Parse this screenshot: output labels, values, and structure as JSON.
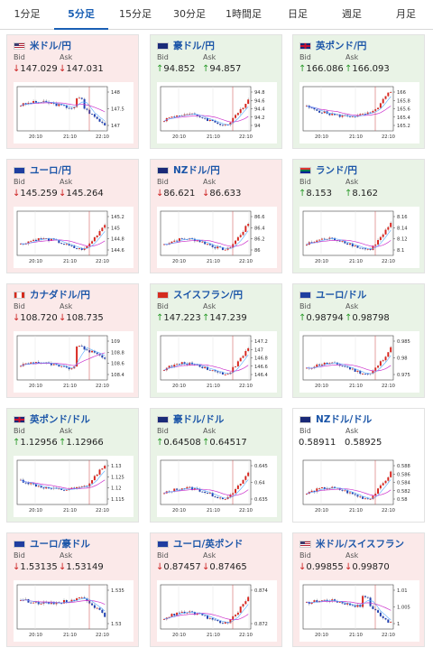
{
  "tabs": [
    "1分足",
    "5分足",
    "15分足",
    "30分足",
    "1時間足",
    "日足",
    "週足",
    "月足"
  ],
  "active_tab": 1,
  "bid_label": "Bid",
  "ask_label": "Ask",
  "x_labels": [
    "20:10",
    "21:10",
    "22:10"
  ],
  "colors": {
    "accent": "#1a5fb4",
    "up": "#2a9a2a",
    "down": "#cc2222",
    "ma": "#cc33cc",
    "cross": "#3377cc"
  },
  "cards": [
    {
      "title": "米ドル/円",
      "flag": "us-flag",
      "bid": "147.029",
      "ask": "147.031",
      "bid_dir": "down",
      "ask_dir": "down",
      "tone": "down",
      "y_ticks": [
        "148",
        "147.5",
        "147"
      ],
      "trend": "down_spike"
    },
    {
      "title": "豪ドル/円",
      "flag": "au-flag",
      "bid": "94.852",
      "ask": "94.857",
      "bid_dir": "up",
      "ask_dir": "up",
      "tone": "up",
      "y_ticks": [
        "94.8",
        "94.6",
        "94.4",
        "94.2",
        "94"
      ],
      "trend": "up"
    },
    {
      "title": "英ポンド/円",
      "flag": "gb-flag",
      "bid": "166.086",
      "ask": "166.093",
      "bid_dir": "up",
      "ask_dir": "up",
      "tone": "up",
      "y_ticks": [
        "166",
        "165.8",
        "165.6",
        "165.4",
        "165.2"
      ],
      "trend": "dip_up"
    },
    {
      "title": "ユーロ/円",
      "flag": "eu-flag",
      "bid": "145.259",
      "ask": "145.264",
      "bid_dir": "down",
      "ask_dir": "down",
      "tone": "down",
      "y_ticks": [
        "145.2",
        "145",
        "144.8",
        "144.6"
      ],
      "trend": "up"
    },
    {
      "title": "NZドル/円",
      "flag": "nz-flag",
      "bid": "86.621",
      "ask": "86.633",
      "bid_dir": "down",
      "ask_dir": "down",
      "tone": "down",
      "y_ticks": [
        "86.6",
        "86.4",
        "86.2",
        "86"
      ],
      "trend": "up"
    },
    {
      "title": "ランド/円",
      "flag": "za-flag",
      "bid": "8.153",
      "ask": "8.162",
      "bid_dir": "up",
      "ask_dir": "up",
      "tone": "up",
      "y_ticks": [
        "8.16",
        "8.14",
        "8.12",
        "8.1"
      ],
      "trend": "up"
    },
    {
      "title": "カナダドル/円",
      "flag": "ca-flag",
      "bid": "108.720",
      "ask": "108.735",
      "bid_dir": "down",
      "ask_dir": "down",
      "tone": "down",
      "y_ticks": [
        "109",
        "108.8",
        "108.6",
        "108.4"
      ],
      "trend": "jump_down"
    },
    {
      "title": "スイスフラン/円",
      "flag": "ch-flag",
      "bid": "147.223",
      "ask": "147.239",
      "bid_dir": "up",
      "ask_dir": "up",
      "tone": "up",
      "y_ticks": [
        "147.2",
        "147",
        "146.8",
        "146.6",
        "146.4"
      ],
      "trend": "up"
    },
    {
      "title": "ユーロ/ドル",
      "flag": "eu-flag",
      "bid": "0.98794",
      "ask": "0.98798",
      "bid_dir": "up",
      "ask_dir": "up",
      "tone": "up",
      "y_ticks": [
        "0.985",
        "0.98",
        "0.975"
      ],
      "trend": "up"
    },
    {
      "title": "英ポンド/ドル",
      "flag": "gb-flag",
      "bid": "1.12956",
      "ask": "1.12966",
      "bid_dir": "up",
      "ask_dir": "up",
      "tone": "up",
      "y_ticks": [
        "1.13",
        "1.125",
        "1.12",
        "1.115"
      ],
      "trend": "dip_up"
    },
    {
      "title": "豪ドル/ドル",
      "flag": "au-flag",
      "bid": "0.64508",
      "ask": "0.64517",
      "bid_dir": "up",
      "ask_dir": "up",
      "tone": "up",
      "y_ticks": [
        "0.645",
        "0.64",
        "0.635"
      ],
      "trend": "up"
    },
    {
      "title": "NZドル/ドル",
      "flag": "nz-flag",
      "bid": "0.58911",
      "ask": "0.58925",
      "bid_dir": "none",
      "ask_dir": "none",
      "tone": "flat",
      "y_ticks": [
        "0.588",
        "0.586",
        "0.584",
        "0.582",
        "0.58"
      ],
      "trend": "up"
    },
    {
      "title": "ユーロ/豪ドル",
      "flag": "eu-flag",
      "bid": "1.53135",
      "ask": "1.53149",
      "bid_dir": "down",
      "ask_dir": "down",
      "tone": "down",
      "y_ticks": [
        "1.535",
        "1.53"
      ],
      "trend": "down"
    },
    {
      "title": "ユーロ/英ポンド",
      "flag": "eu-flag",
      "bid": "0.87457",
      "ask": "0.87465",
      "bid_dir": "down",
      "ask_dir": "down",
      "tone": "down",
      "y_ticks": [
        "0.874",
        "0.872"
      ],
      "trend": "up"
    },
    {
      "title": "米ドル/スイスフラン",
      "flag": "us-flag",
      "bid": "0.99855",
      "ask": "0.99870",
      "bid_dir": "down",
      "ask_dir": "down",
      "tone": "down",
      "y_ticks": [
        "1.01",
        "1.005",
        "1"
      ],
      "trend": "down_spike"
    }
  ]
}
